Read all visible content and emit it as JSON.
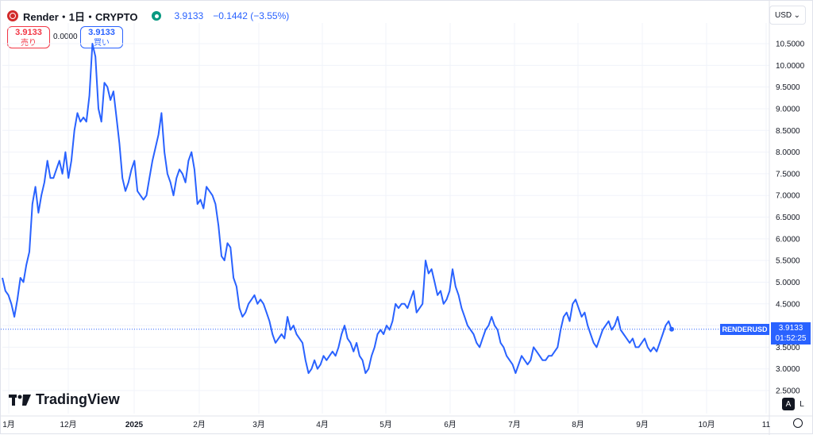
{
  "header": {
    "title": "Render・1日・CRYPTO",
    "price": "3.9133",
    "change": "−0.1442 (−3.55%)"
  },
  "trade": {
    "sell_price": "3.9133",
    "sell_label": "売り",
    "spread": "0.0000",
    "buy_price": "3.9133",
    "buy_label": "買い"
  },
  "currency": "USD",
  "brand": "TradingView",
  "controls": {
    "auto_label": "A",
    "log_label": "L"
  },
  "last": {
    "symbol": "RENDERUSD",
    "price": "3.9133",
    "countdown": "01:52:25"
  },
  "colors": {
    "line": "#2962ff",
    "down": "#f23645",
    "up": "#089981"
  },
  "chart_data": {
    "type": "line",
    "series_color": "#2962ff",
    "y_ticks": [
      "10.5000",
      "10.0000",
      "9.5000",
      "9.0000",
      "8.5000",
      "8.0000",
      "7.5000",
      "7.0000",
      "6.5000",
      "6.0000",
      "5.5000",
      "5.0000",
      "4.5000",
      "4.0000",
      "3.5000",
      "3.0000",
      "2.5000"
    ],
    "x_ticks": [
      "1月",
      "12月",
      "2025",
      "2月",
      "3月",
      "4月",
      "5月",
      "6月",
      "7月",
      "8月",
      "9月",
      "10月",
      "11"
    ],
    "ylim": [
      2.5,
      10.5
    ],
    "last_value": 3.9133,
    "values": [
      5.1,
      4.8,
      4.7,
      4.5,
      4.2,
      4.6,
      5.1,
      5.0,
      5.4,
      5.7,
      6.8,
      7.2,
      6.6,
      7.0,
      7.3,
      7.8,
      7.4,
      7.4,
      7.6,
      7.8,
      7.5,
      8.0,
      7.4,
      7.8,
      8.5,
      8.9,
      8.7,
      8.8,
      8.7,
      9.3,
      10.5,
      10.2,
      9.0,
      8.7,
      9.6,
      9.5,
      9.2,
      9.4,
      8.8,
      8.2,
      7.4,
      7.1,
      7.3,
      7.6,
      7.8,
      7.1,
      7.0,
      6.9,
      7.0,
      7.4,
      7.8,
      8.1,
      8.4,
      8.9,
      8.0,
      7.5,
      7.3,
      7.0,
      7.4,
      7.6,
      7.5,
      7.3,
      7.8,
      8.0,
      7.6,
      6.8,
      6.9,
      6.7,
      7.2,
      7.1,
      7.0,
      6.8,
      6.3,
      5.6,
      5.5,
      5.9,
      5.8,
      5.1,
      4.9,
      4.4,
      4.2,
      4.3,
      4.5,
      4.6,
      4.7,
      4.5,
      4.6,
      4.5,
      4.3,
      4.1,
      3.8,
      3.6,
      3.7,
      3.8,
      3.7,
      4.2,
      3.9,
      4.0,
      3.8,
      3.7,
      3.6,
      3.2,
      2.9,
      3.0,
      3.2,
      3.0,
      3.1,
      3.3,
      3.2,
      3.3,
      3.4,
      3.3,
      3.5,
      3.8,
      4.0,
      3.7,
      3.6,
      3.4,
      3.6,
      3.3,
      3.2,
      2.9,
      3.0,
      3.3,
      3.5,
      3.8,
      3.9,
      3.8,
      4.0,
      3.9,
      4.1,
      4.5,
      4.4,
      4.5,
      4.5,
      4.4,
      4.6,
      4.8,
      4.3,
      4.4,
      4.5,
      5.5,
      5.2,
      5.3,
      5.0,
      4.7,
      4.8,
      4.5,
      4.6,
      4.8,
      5.3,
      4.9,
      4.7,
      4.4,
      4.2,
      4.0,
      3.9,
      3.8,
      3.6,
      3.5,
      3.7,
      3.9,
      4.0,
      4.2,
      4.0,
      3.9,
      3.6,
      3.5,
      3.3,
      3.2,
      3.1,
      2.9,
      3.1,
      3.3,
      3.2,
      3.1,
      3.2,
      3.5,
      3.4,
      3.3,
      3.2,
      3.2,
      3.3,
      3.3,
      3.4,
      3.5,
      3.9,
      4.2,
      4.3,
      4.1,
      4.5,
      4.6,
      4.4,
      4.2,
      4.3,
      4.0,
      3.8,
      3.6,
      3.5,
      3.7,
      3.9,
      4.0,
      4.1,
      3.9,
      4.0,
      4.2,
      3.9,
      3.8,
      3.7,
      3.6,
      3.7,
      3.5,
      3.5,
      3.6,
      3.7,
      3.5,
      3.4,
      3.5,
      3.4,
      3.6,
      3.8,
      4.0,
      4.1,
      3.9
    ]
  }
}
